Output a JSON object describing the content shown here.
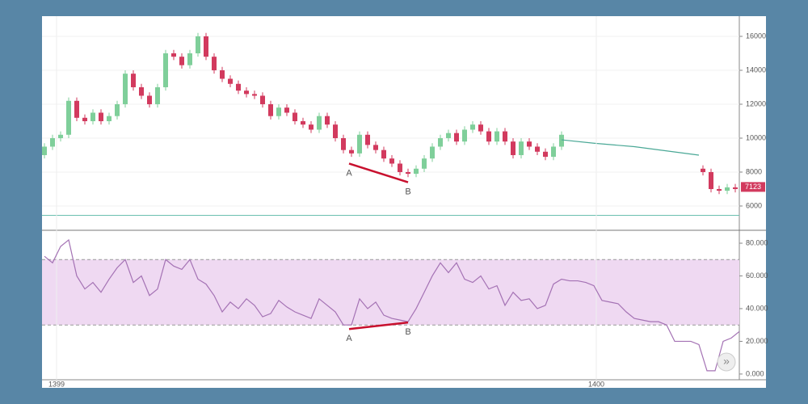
{
  "chart_data": [
    {
      "type": "candlestick",
      "xlim": [
        -0.3,
        86
      ],
      "ylim": [
        4570,
        17190
      ],
      "yticks": [
        6000,
        8000,
        10000,
        12000,
        14000,
        16000
      ],
      "grid": true,
      "up_color": "#7fcf9a",
      "down_color": "#d23a5e",
      "x": [
        0,
        1,
        2,
        3,
        4,
        5,
        6,
        7,
        8,
        9,
        10,
        11,
        12,
        13,
        14,
        15,
        16,
        17,
        18,
        19,
        20,
        21,
        22,
        23,
        24,
        25,
        26,
        27,
        28,
        29,
        30,
        31,
        32,
        33,
        34,
        35,
        36,
        37,
        38,
        39,
        40,
        41,
        42,
        43,
        44,
        45,
        46,
        47,
        48,
        49,
        50,
        51,
        52,
        53,
        54,
        55,
        56,
        57,
        58,
        59,
        60,
        61,
        62,
        63,
        64,
        81.5,
        82.5,
        83.5,
        84.5,
        85.5
      ],
      "open": [
        9000,
        9500,
        10000,
        10200,
        12200,
        11200,
        11000,
        11500,
        11000,
        11300,
        12000,
        13800,
        13000,
        12500,
        12000,
        13000,
        15000,
        14800,
        14300,
        15000,
        16000,
        14800,
        14000,
        13500,
        13200,
        12800,
        12600,
        12500,
        12000,
        11300,
        11800,
        11500,
        11000,
        10800,
        10500,
        11300,
        10800,
        10000,
        9300,
        9100,
        10200,
        9600,
        9300,
        8800,
        8500,
        8000,
        7900,
        8200,
        8800,
        9500,
        10000,
        10300,
        9800,
        10500,
        10800,
        10400,
        9800,
        10400,
        9800,
        9000,
        9800,
        9500,
        9200,
        8900,
        9500,
        8200,
        8000,
        7000,
        6900,
        7100
      ],
      "high": [
        9700,
        10200,
        10400,
        12400,
        12400,
        11400,
        11700,
        11700,
        11500,
        12200,
        14000,
        14000,
        13200,
        12700,
        13200,
        15200,
        15200,
        15000,
        15200,
        16200,
        16200,
        15000,
        14200,
        13700,
        13400,
        13000,
        12800,
        12700,
        12200,
        12000,
        12000,
        11700,
        11200,
        11000,
        11500,
        11500,
        11000,
        10200,
        9500,
        10400,
        10400,
        9800,
        9500,
        9000,
        8700,
        8200,
        8400,
        9000,
        9700,
        10200,
        10500,
        10500,
        10700,
        11000,
        11000,
        10600,
        10600,
        10600,
        10000,
        10000,
        10000,
        9700,
        9400,
        9700,
        10400,
        8400,
        8200,
        7200,
        7300,
        7300
      ],
      "low": [
        8800,
        9300,
        9800,
        10000,
        11000,
        10800,
        10800,
        10800,
        10800,
        11100,
        11800,
        12800,
        12300,
        11800,
        11800,
        12800,
        14600,
        14100,
        14100,
        14800,
        14600,
        13800,
        13300,
        13000,
        12600,
        12400,
        12300,
        11800,
        11100,
        11100,
        11300,
        10800,
        10600,
        10300,
        10300,
        10600,
        9800,
        9100,
        8900,
        8900,
        9400,
        9100,
        8600,
        8300,
        7800,
        7700,
        7700,
        8000,
        8600,
        9300,
        9800,
        9600,
        9600,
        10300,
        10200,
        9600,
        9600,
        9600,
        8800,
        8800,
        9300,
        9000,
        8700,
        8700,
        9300,
        7800,
        6800,
        6700,
        6700,
        6800
      ],
      "close": [
        9500,
        10000,
        10200,
        12200,
        11200,
        11000,
        11500,
        11000,
        11300,
        12000,
        13800,
        13000,
        12500,
        12000,
        13000,
        15000,
        14800,
        14300,
        15000,
        16000,
        14800,
        14000,
        13500,
        13200,
        12800,
        12600,
        12500,
        12000,
        11300,
        11800,
        11500,
        11000,
        10800,
        10500,
        11300,
        10800,
        10000,
        9300,
        9100,
        10200,
        9600,
        9300,
        8800,
        8500,
        8000,
        7900,
        8200,
        8800,
        9500,
        10000,
        10300,
        9800,
        10500,
        10800,
        10400,
        9800,
        10400,
        9800,
        9000,
        9800,
        9500,
        9200,
        8900,
        9500,
        10200,
        8000,
        7000,
        6900,
        7100,
        7000
      ],
      "series": [
        {
          "x": [
            64,
            68,
            73,
            81
          ],
          "values": [
            9900,
            9700,
            9500,
            9000
          ],
          "color": "#4aa896"
        }
      ],
      "reference_line": {
        "value": 5450,
        "color": "#6cc0b0"
      },
      "last_price": 7123,
      "annotations": [
        {
          "label": "A",
          "x": 37.7,
          "y": 8500
        },
        {
          "label": "B",
          "x": 45,
          "y": 7400
        }
      ]
    },
    {
      "type": "line",
      "xlim": [
        -0.3,
        86
      ],
      "ylim": [
        -3.5,
        87.9
      ],
      "yticks": [
        {
          "value": 0,
          "label": "0.000"
        },
        {
          "value": 20,
          "label": "20.000"
        },
        {
          "value": 40,
          "label": "40.000"
        },
        {
          "value": 60,
          "label": "60.000"
        },
        {
          "value": 80,
          "label": "80.000"
        }
      ],
      "xticks": [
        {
          "value": 1.5,
          "label": "1399"
        },
        {
          "value": 68.3,
          "label": "1400"
        }
      ],
      "band": {
        "range": [
          30,
          70
        ],
        "color": "#efd9f2"
      },
      "series": [
        {
          "color": "#a472b4",
          "x": [
            0,
            1,
            2,
            3,
            4,
            5,
            6,
            7,
            8,
            9,
            10,
            11,
            12,
            13,
            14,
            15,
            16,
            17,
            18,
            19,
            20,
            21,
            22,
            23,
            24,
            25,
            26,
            27,
            28,
            29,
            30,
            31,
            32,
            33,
            34,
            35,
            36,
            37,
            38,
            39,
            40,
            41,
            42,
            43,
            44,
            45,
            46,
            47,
            48,
            49,
            50,
            51,
            52,
            53,
            54,
            55,
            56,
            57,
            58,
            59,
            60,
            61,
            62,
            63,
            64,
            65,
            66,
            67,
            68,
            69,
            70,
            71,
            72,
            73,
            74,
            75,
            76,
            77,
            78,
            79,
            80,
            81,
            82,
            83,
            84,
            85,
            86
          ],
          "values": [
            72,
            68,
            78,
            82,
            60,
            52,
            56,
            50,
            58,
            65,
            70,
            56,
            60,
            48,
            52,
            70,
            66,
            64,
            70,
            58,
            55,
            48,
            38,
            44,
            40,
            46,
            42,
            35,
            37,
            45,
            41,
            38,
            36,
            34,
            46,
            42,
            38,
            30,
            30,
            46,
            40,
            44,
            36,
            34,
            33,
            32,
            40,
            50,
            60,
            68,
            62,
            68,
            58,
            56,
            60,
            52,
            54,
            42,
            50,
            45,
            46,
            40,
            42,
            55,
            58,
            57,
            57,
            56,
            54,
            45,
            44,
            43,
            38,
            34,
            33,
            32,
            32,
            30,
            20,
            20,
            20,
            18,
            2,
            2,
            20,
            22,
            26
          ]
        }
      ],
      "annotations": [
        {
          "label": "A",
          "x": 37.7,
          "y": 27.5
        },
        {
          "label": "B",
          "x": 45,
          "y": 31.5
        }
      ]
    }
  ],
  "controls": {
    "scroll_button": "»"
  }
}
